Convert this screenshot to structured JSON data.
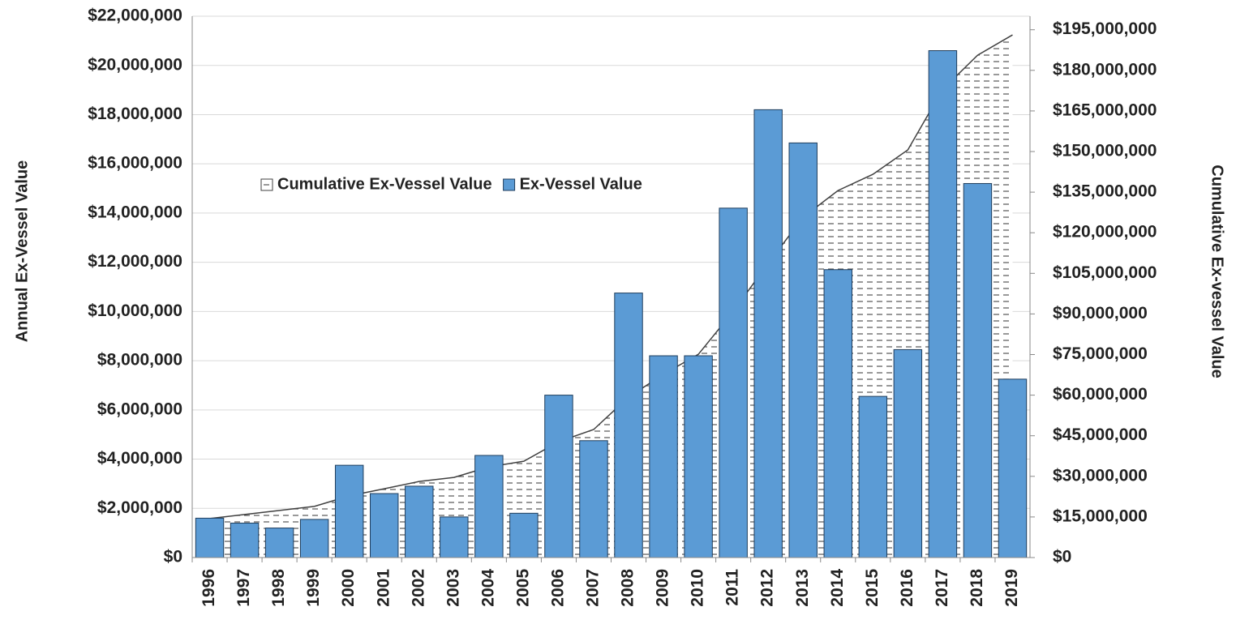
{
  "chart_data": {
    "type": "bar",
    "y_label": "Annual Ex-Vessel Value",
    "y2_label": "Cumulative  Ex-vessel  Value",
    "categories": [
      "1996",
      "1997",
      "1998",
      "1999",
      "2000",
      "2001",
      "2002",
      "2003",
      "2004",
      "2005",
      "2006",
      "2007",
      "2008",
      "2009",
      "2010",
      "2011",
      "2012",
      "2013",
      "2014",
      "2015",
      "2016",
      "2017",
      "2018",
      "2019"
    ],
    "series": [
      {
        "name": "Cumulative Ex-Vessel Value",
        "type": "area",
        "axis": "y2",
        "color": "#404040",
        "values": [
          14400000,
          15900000,
          17400000,
          18900000,
          22800000,
          25400000,
          28100000,
          29600000,
          33500000,
          35600000,
          42800000,
          47300000,
          59300000,
          67700000,
          75100000,
          91000000,
          108700000,
          125700000,
          135600000,
          141600000,
          150600000,
          173000000,
          185600000,
          193100000
        ]
      },
      {
        "name": "Ex-Vessel Value",
        "type": "bar",
        "color": "#5b9bd5",
        "values": [
          1600000,
          1400000,
          1200000,
          1550000,
          3750000,
          2600000,
          2900000,
          1650000,
          4150000,
          1800000,
          6600000,
          4750000,
          10750000,
          8200000,
          8200000,
          14200000,
          18200000,
          16850000,
          11700000,
          6550000,
          8450000,
          20600000,
          15200000,
          7250000
        ]
      }
    ],
    "ylim": [
      0,
      22000000
    ],
    "yticks": [
      {
        "value": 0,
        "label": "$0"
      },
      {
        "value": 2000000,
        "label": "$2,000,000"
      },
      {
        "value": 4000000,
        "label": "$4,000,000"
      },
      {
        "value": 6000000,
        "label": "$6,000,000"
      },
      {
        "value": 8000000,
        "label": "$8,000,000"
      },
      {
        "value": 10000000,
        "label": "$10,000,000"
      },
      {
        "value": 12000000,
        "label": "$12,000,000"
      },
      {
        "value": 14000000,
        "label": "$14,000,000"
      },
      {
        "value": 16000000,
        "label": "$16,000,000"
      },
      {
        "value": 18000000,
        "label": "$18,000,000"
      },
      {
        "value": 20000000,
        "label": "$20,000,000"
      },
      {
        "value": 22000000,
        "label": "$22,000,000"
      }
    ],
    "y2lim": [
      0,
      200000000
    ],
    "y2ticks": [
      {
        "value": 0,
        "label": "$0"
      },
      {
        "value": 15000000,
        "label": "$15,000,000"
      },
      {
        "value": 30000000,
        "label": "$30,000,000"
      },
      {
        "value": 45000000,
        "label": "$45,000,000"
      },
      {
        "value": 60000000,
        "label": "$60,000,000"
      },
      {
        "value": 75000000,
        "label": "$75,000,000"
      },
      {
        "value": 90000000,
        "label": "$90,000,000"
      },
      {
        "value": 105000000,
        "label": "$105,000,000"
      },
      {
        "value": 120000000,
        "label": "$120,000,000"
      },
      {
        "value": 135000000,
        "label": "$135,000,000"
      },
      {
        "value": 150000000,
        "label": "$150,000,000"
      },
      {
        "value": 165000000,
        "label": "$165,000,000"
      },
      {
        "value": 180000000,
        "label": "$180,000,000"
      },
      {
        "value": 195000000,
        "label": "$195,000,000"
      }
    ],
    "grid": true
  }
}
